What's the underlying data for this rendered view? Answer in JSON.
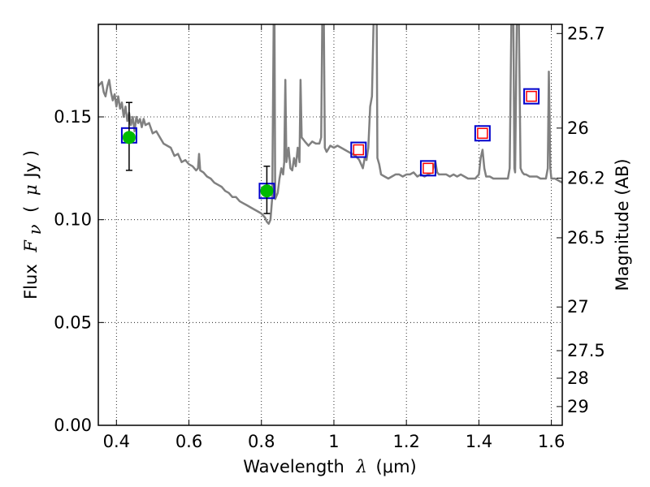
{
  "chart_data": {
    "type": "scatter",
    "title": "",
    "xlabel": {
      "prefix": "Wavelength",
      "symbol": "λ",
      "unit": "(μm)"
    },
    "ylabel": {
      "prefix": "Flux",
      "symbol": "F",
      "subscript": "ν",
      "unit_open": "(",
      "unit_symbol": "μ",
      "unit_rest": "Jy )"
    },
    "y2label": "Magnitude (AB)",
    "xlim": [
      0.35,
      1.63
    ],
    "ylim": [
      0.0,
      0.195
    ],
    "grid": true,
    "x_ticks": [
      {
        "value": 0.4,
        "label": "0.4"
      },
      {
        "value": 0.6,
        "label": "0.6"
      },
      {
        "value": 0.8,
        "label": "0.8"
      },
      {
        "value": 1.0,
        "label": "1"
      },
      {
        "value": 1.2,
        "label": "1.2"
      },
      {
        "value": 1.4,
        "label": "1.4"
      },
      {
        "value": 1.6,
        "label": "1.6"
      }
    ],
    "y_ticks": [
      {
        "value": 0.0,
        "label": "0.00"
      },
      {
        "value": 0.05,
        "label": "0.05"
      },
      {
        "value": 0.1,
        "label": "0.10"
      },
      {
        "value": 0.15,
        "label": "0.15"
      }
    ],
    "y2_ticks": [
      {
        "value": 25.7,
        "label": "25.7"
      },
      {
        "value": 26.0,
        "label": "26"
      },
      {
        "value": 26.2,
        "label": "26.2"
      },
      {
        "value": 26.5,
        "label": "26.5"
      },
      {
        "value": 27.0,
        "label": "27"
      },
      {
        "value": 27.5,
        "label": "27.5"
      },
      {
        "value": 28.0,
        "label": "28"
      },
      {
        "value": 29.0,
        "label": "29"
      }
    ],
    "y2_scale": "AB magnitude: m = -2.5 log10(F_μJy) + 23.9",
    "series": [
      {
        "kind": "spectrum-line",
        "color": "#808080",
        "points": [
          [
            0.35,
            0.165
          ],
          [
            0.36,
            0.167
          ],
          [
            0.365,
            0.162
          ],
          [
            0.37,
            0.16
          ],
          [
            0.375,
            0.165
          ],
          [
            0.38,
            0.168
          ],
          [
            0.385,
            0.162
          ],
          [
            0.39,
            0.158
          ],
          [
            0.395,
            0.161
          ],
          [
            0.4,
            0.155
          ],
          [
            0.405,
            0.16
          ],
          [
            0.41,
            0.154
          ],
          [
            0.415,
            0.157
          ],
          [
            0.42,
            0.15
          ],
          [
            0.425,
            0.155
          ],
          [
            0.43,
            0.148
          ],
          [
            0.435,
            0.152
          ],
          [
            0.44,
            0.146
          ],
          [
            0.445,
            0.15
          ],
          [
            0.45,
            0.143
          ],
          [
            0.455,
            0.15
          ],
          [
            0.46,
            0.147
          ],
          [
            0.465,
            0.149
          ],
          [
            0.47,
            0.145
          ],
          [
            0.475,
            0.149
          ],
          [
            0.48,
            0.146
          ],
          [
            0.49,
            0.147
          ],
          [
            0.5,
            0.142
          ],
          [
            0.51,
            0.143
          ],
          [
            0.52,
            0.14
          ],
          [
            0.53,
            0.137
          ],
          [
            0.54,
            0.136
          ],
          [
            0.55,
            0.135
          ],
          [
            0.56,
            0.131
          ],
          [
            0.57,
            0.132
          ],
          [
            0.58,
            0.128
          ],
          [
            0.59,
            0.129
          ],
          [
            0.6,
            0.127
          ],
          [
            0.61,
            0.126
          ],
          [
            0.62,
            0.124
          ],
          [
            0.625,
            0.125
          ],
          [
            0.628,
            0.132
          ],
          [
            0.631,
            0.124
          ],
          [
            0.64,
            0.123
          ],
          [
            0.65,
            0.121
          ],
          [
            0.66,
            0.12
          ],
          [
            0.67,
            0.118
          ],
          [
            0.68,
            0.117
          ],
          [
            0.69,
            0.116
          ],
          [
            0.7,
            0.114
          ],
          [
            0.71,
            0.113
          ],
          [
            0.72,
            0.111
          ],
          [
            0.73,
            0.111
          ],
          [
            0.74,
            0.109
          ],
          [
            0.75,
            0.108
          ],
          [
            0.76,
            0.107
          ],
          [
            0.77,
            0.106
          ],
          [
            0.78,
            0.105
          ],
          [
            0.79,
            0.104
          ],
          [
            0.8,
            0.103
          ],
          [
            0.81,
            0.101
          ],
          [
            0.815,
            0.099
          ],
          [
            0.82,
            0.098
          ],
          [
            0.825,
            0.1
          ],
          [
            0.83,
            0.111
          ],
          [
            0.834,
            0.2
          ],
          [
            0.836,
            0.2
          ],
          [
            0.838,
            0.11
          ],
          [
            0.845,
            0.113
          ],
          [
            0.85,
            0.12
          ],
          [
            0.855,
            0.125
          ],
          [
            0.86,
            0.122
          ],
          [
            0.863,
            0.128
          ],
          [
            0.866,
            0.168
          ],
          [
            0.869,
            0.128
          ],
          [
            0.875,
            0.135
          ],
          [
            0.88,
            0.125
          ],
          [
            0.885,
            0.124
          ],
          [
            0.89,
            0.13
          ],
          [
            0.895,
            0.126
          ],
          [
            0.9,
            0.135
          ],
          [
            0.905,
            0.128
          ],
          [
            0.908,
            0.168
          ],
          [
            0.911,
            0.14
          ],
          [
            0.92,
            0.138
          ],
          [
            0.93,
            0.136
          ],
          [
            0.94,
            0.138
          ],
          [
            0.95,
            0.137
          ],
          [
            0.96,
            0.137
          ],
          [
            0.965,
            0.14
          ],
          [
            0.968,
            0.2
          ],
          [
            0.972,
            0.2
          ],
          [
            0.975,
            0.135
          ],
          [
            0.98,
            0.133
          ],
          [
            0.99,
            0.136
          ],
          [
            1.0,
            0.135
          ],
          [
            1.01,
            0.136
          ],
          [
            1.02,
            0.135
          ],
          [
            1.03,
            0.134
          ],
          [
            1.04,
            0.133
          ],
          [
            1.05,
            0.132
          ],
          [
            1.06,
            0.131
          ],
          [
            1.07,
            0.129
          ],
          [
            1.08,
            0.125
          ],
          [
            1.085,
            0.13
          ],
          [
            1.09,
            0.129
          ],
          [
            1.095,
            0.135
          ],
          [
            1.1,
            0.155
          ],
          [
            1.105,
            0.16
          ],
          [
            1.11,
            0.2
          ],
          [
            1.118,
            0.2
          ],
          [
            1.12,
            0.13
          ],
          [
            1.125,
            0.127
          ],
          [
            1.13,
            0.122
          ],
          [
            1.14,
            0.121
          ],
          [
            1.15,
            0.12
          ],
          [
            1.16,
            0.121
          ],
          [
            1.17,
            0.122
          ],
          [
            1.18,
            0.122
          ],
          [
            1.19,
            0.121
          ],
          [
            1.2,
            0.122
          ],
          [
            1.21,
            0.122
          ],
          [
            1.22,
            0.123
          ],
          [
            1.23,
            0.121
          ],
          [
            1.24,
            0.122
          ],
          [
            1.25,
            0.121
          ],
          [
            1.26,
            0.122
          ],
          [
            1.27,
            0.123
          ],
          [
            1.28,
            0.128
          ],
          [
            1.285,
            0.123
          ],
          [
            1.29,
            0.122
          ],
          [
            1.3,
            0.122
          ],
          [
            1.31,
            0.122
          ],
          [
            1.32,
            0.121
          ],
          [
            1.33,
            0.122
          ],
          [
            1.34,
            0.121
          ],
          [
            1.35,
            0.122
          ],
          [
            1.36,
            0.121
          ],
          [
            1.37,
            0.12
          ],
          [
            1.38,
            0.12
          ],
          [
            1.39,
            0.12
          ],
          [
            1.4,
            0.122
          ],
          [
            1.405,
            0.13
          ],
          [
            1.41,
            0.134
          ],
          [
            1.415,
            0.125
          ],
          [
            1.42,
            0.121
          ],
          [
            1.43,
            0.121
          ],
          [
            1.44,
            0.12
          ],
          [
            1.45,
            0.12
          ],
          [
            1.46,
            0.12
          ],
          [
            1.47,
            0.12
          ],
          [
            1.48,
            0.12
          ],
          [
            1.485,
            0.125
          ],
          [
            1.49,
            0.2
          ],
          [
            1.495,
            0.2
          ],
          [
            1.498,
            0.125
          ],
          [
            1.5,
            0.123
          ],
          [
            1.505,
            0.2
          ],
          [
            1.51,
            0.2
          ],
          [
            1.515,
            0.125
          ],
          [
            1.52,
            0.123
          ],
          [
            1.525,
            0.122
          ],
          [
            1.53,
            0.122
          ],
          [
            1.54,
            0.121
          ],
          [
            1.55,
            0.121
          ],
          [
            1.56,
            0.121
          ],
          [
            1.57,
            0.12
          ],
          [
            1.58,
            0.12
          ],
          [
            1.585,
            0.12
          ],
          [
            1.59,
            0.125
          ],
          [
            1.593,
            0.172
          ],
          [
            1.597,
            0.125
          ],
          [
            1.6,
            0.12
          ],
          [
            1.61,
            0.12
          ],
          [
            1.62,
            0.119
          ],
          [
            1.63,
            0.118
          ]
        ]
      },
      {
        "kind": "model-photometry",
        "marker": "square",
        "stroke": "#0000cc",
        "points": [
          {
            "x": 0.435,
            "y": 0.141
          },
          {
            "x": 0.815,
            "y": 0.114
          },
          {
            "x": 1.068,
            "y": 0.134
          },
          {
            "x": 1.26,
            "y": 0.125
          },
          {
            "x": 1.41,
            "y": 0.142
          },
          {
            "x": 1.545,
            "y": 0.16
          }
        ]
      },
      {
        "kind": "upper-limits",
        "marker": "square",
        "stroke": "#ff0000",
        "points": [
          {
            "x": 1.068,
            "y": 0.134
          },
          {
            "x": 1.26,
            "y": 0.125
          },
          {
            "x": 1.41,
            "y": 0.142
          },
          {
            "x": 1.545,
            "y": 0.16
          }
        ]
      },
      {
        "kind": "observed-photometry",
        "marker": "circle",
        "fill": "#00bb00",
        "points": [
          {
            "x": 0.435,
            "y": 0.14,
            "yerr_low": 0.124,
            "yerr_high": 0.157
          },
          {
            "x": 0.815,
            "y": 0.114,
            "yerr_low": 0.103,
            "yerr_high": 0.126
          }
        ]
      }
    ]
  }
}
